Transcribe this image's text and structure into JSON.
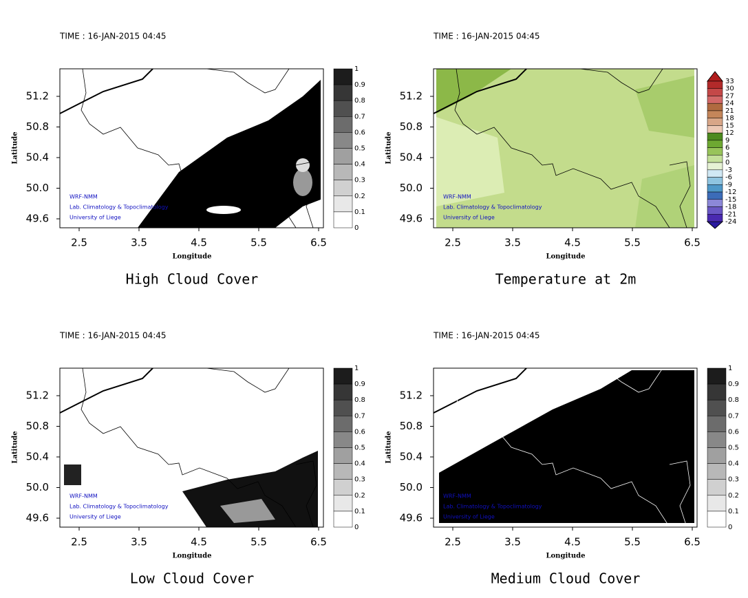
{
  "panels": [
    {
      "time": "TIME : 16-JAN-2015 04:45",
      "title": "High Cloud Cover",
      "x_label": "Longitude",
      "y_label": "Latitude",
      "x_ticks": [
        "2.5",
        "3.5",
        "4.5",
        "5.5",
        "6.5"
      ],
      "y_ticks": [
        "51.2",
        "50.8",
        "50.4",
        "50.0",
        "49.6"
      ],
      "colorbar": [
        "1",
        "0.9",
        "0.8",
        "0.7",
        "0.6",
        "0.5",
        "0.4",
        "0.3",
        "0.2",
        "0.1",
        "0"
      ],
      "credits": [
        "WRF-NMM",
        "Lab. Climatology & Topoclimatology",
        "University of Liege"
      ]
    },
    {
      "time": "TIME : 16-JAN-2015 04:45",
      "title": "Temperature at 2m",
      "x_label": "Longitude",
      "y_label": "Latitude",
      "x_ticks": [
        "2.5",
        "3.5",
        "4.5",
        "5.5",
        "6.5"
      ],
      "y_ticks": [
        "51.2",
        "50.8",
        "50.4",
        "50.0",
        "49.6"
      ],
      "colorbar": [
        "33",
        "30",
        "27",
        "24",
        "21",
        "18",
        "15",
        "12",
        "9",
        "6",
        "3",
        "0",
        "-3",
        "-6",
        "-9",
        "-12",
        "-15",
        "-18",
        "-21",
        "-24"
      ],
      "credits": [
        "WRF-NMM",
        "Lab. Climatology & Topoclimatology",
        "University of Liege"
      ]
    },
    {
      "time": "TIME : 16-JAN-2015 04:45",
      "title": "Low Cloud Cover",
      "x_label": "Longitude",
      "y_label": "Latitude",
      "x_ticks": [
        "2.5",
        "3.5",
        "4.5",
        "5.5",
        "6.5"
      ],
      "y_ticks": [
        "51.2",
        "50.8",
        "50.4",
        "50.0",
        "49.6"
      ],
      "colorbar": [
        "1",
        "0.9",
        "0.8",
        "0.7",
        "0.6",
        "0.5",
        "0.4",
        "0.3",
        "0.2",
        "0.1",
        "0"
      ],
      "credits": [
        "WRF-NMM",
        "Lab. Climatology & Topoclimatology",
        "University of Liege"
      ]
    },
    {
      "time": "TIME : 16-JAN-2015 04:45",
      "title": "Medium Cloud Cover",
      "x_label": "Longitude",
      "y_label": "Latitude",
      "x_ticks": [
        "2.5",
        "3.5",
        "4.5",
        "5.5",
        "6.5"
      ],
      "y_ticks": [
        "51.2",
        "50.8",
        "50.4",
        "50.0",
        "49.6"
      ],
      "colorbar": [
        "1",
        "0.9",
        "0.8",
        "0.7",
        "0.6",
        "0.5",
        "0.4",
        "0.3",
        "0.2",
        "0.1",
        "0"
      ],
      "credits": [
        "WRF-NMM",
        "Lab. Climatology & Topoclimatology",
        "University of Liege"
      ]
    }
  ]
}
